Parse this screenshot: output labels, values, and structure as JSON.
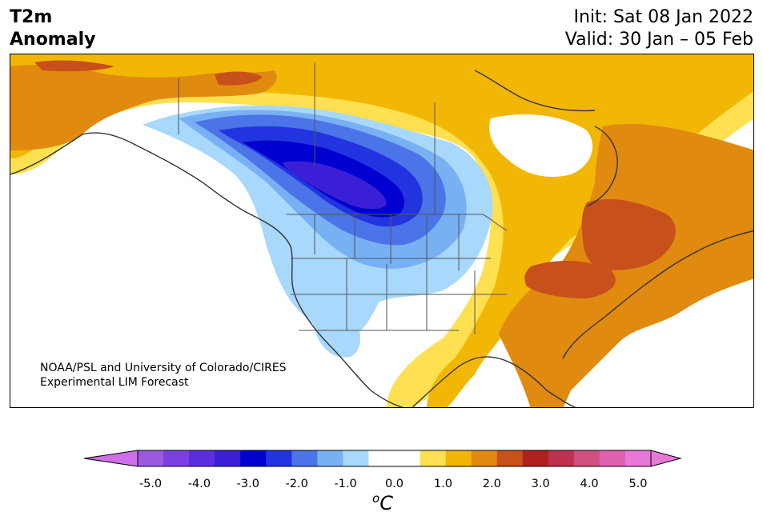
{
  "title": {
    "left_line1": "T2m",
    "left_line2": "Anomaly",
    "init": "Init: Sat 08 Jan 2022",
    "valid": "Valid: 30 Jan – 05 Feb"
  },
  "credit": {
    "line1": "NOAA/PSL and University of Colorado/CIRES",
    "line2": "Experimental LIM Forecast"
  },
  "colorbar": {
    "unit_base": "C",
    "unit_sup": "o",
    "tick_labels": [
      "-5.0",
      "-4.0",
      "-3.0",
      "-2.0",
      "-1.0",
      "0.0",
      "1.0",
      "2.0",
      "3.0",
      "4.0",
      "5.0"
    ],
    "bins": [
      {
        "range": "-5.0 to -4.5",
        "color": "#9b59e0"
      },
      {
        "range": "-4.5 to -4.0",
        "color": "#7b3fe4"
      },
      {
        "range": "-4.0 to -3.5",
        "color": "#5b2ee0"
      },
      {
        "range": "-3.5 to -3.0",
        "color": "#3a1fd6"
      },
      {
        "range": "-3.0 to -2.5",
        "color": "#0000d0"
      },
      {
        "range": "-2.5 to -2.0",
        "color": "#2233e0"
      },
      {
        "range": "-2.0 to -1.5",
        "color": "#4a74e8"
      },
      {
        "range": "-1.5 to -1.0",
        "color": "#78b0f4"
      },
      {
        "range": "-1.0 to -0.5",
        "color": "#a8d8fc"
      },
      {
        "range": "-0.5 to 0.0",
        "color": "#ffffff"
      },
      {
        "range": "0.0 to 0.5",
        "color": "#ffffff"
      },
      {
        "range": "0.5 to 1.0",
        "color": "#ffe050"
      },
      {
        "range": "1.0 to 1.5",
        "color": "#f2b705"
      },
      {
        "range": "1.5 to 2.0",
        "color": "#e08a10"
      },
      {
        "range": "2.0 to 2.5",
        "color": "#c8501a"
      },
      {
        "range": "2.5 to 3.0",
        "color": "#b02020"
      },
      {
        "range": "3.0 to 3.5",
        "color": "#c03050"
      },
      {
        "range": "3.5 to 4.0",
        "color": "#d05080"
      },
      {
        "range": "4.0 to 4.5",
        "color": "#e060b0"
      },
      {
        "range": "4.5 to 5.0",
        "color": "#e878d8"
      }
    ],
    "under_color": "#d070e8",
    "over_color": "#e878d8"
  }
}
